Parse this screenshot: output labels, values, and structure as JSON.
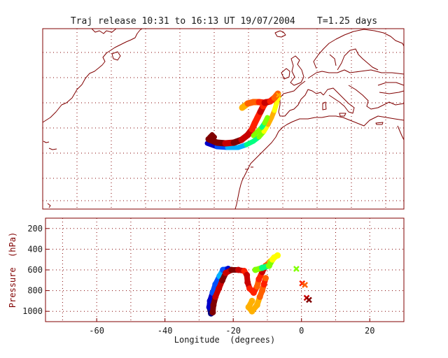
{
  "title": "Traj release 10:31 to 16:13 UT 19/07/2004    T=1.25 days",
  "colors": {
    "frame": "#800000",
    "coast": "#800000",
    "grid": "#800000",
    "text": "#1a1a1a",
    "ylabel": "#800000",
    "rainbow": [
      "#000080",
      "#0000c8",
      "#0050ff",
      "#00b0ff",
      "#00ff80",
      "#80ff00",
      "#ffff00",
      "#ffb000",
      "#ff6000",
      "#ff2000",
      "#c80000",
      "#800000"
    ]
  },
  "map": {
    "lon_range": [
      -75,
      30
    ],
    "lat_range": [
      0,
      65
    ],
    "trajectories_color_scale": "rainbow"
  },
  "chart_data": {
    "type": "scatter",
    "xlabel": "Longitude  (degrees)",
    "ylabel": "Pressure  (hPa)",
    "xlim": [
      -75,
      30
    ],
    "ylim": [
      1100,
      100
    ],
    "x_ticks": [
      "-60",
      "-40",
      "-20",
      "0",
      "20"
    ],
    "y_ticks": [
      "200",
      "400",
      "600",
      "800",
      "1000"
    ],
    "x_tick_values": [
      -60,
      -40,
      -20,
      0,
      20
    ],
    "y_tick_values": [
      200,
      400,
      600,
      800,
      1000
    ],
    "grid": true,
    "trajectory_points": [
      {
        "lon": -26.5,
        "p": 1020,
        "c": 0
      },
      {
        "lon": -27.0,
        "p": 960,
        "c": 1
      },
      {
        "lon": -26.8,
        "p": 900,
        "c": 1
      },
      {
        "lon": -26.0,
        "p": 820,
        "c": 2
      },
      {
        "lon": -25.2,
        "p": 740,
        "c": 2
      },
      {
        "lon": -24.0,
        "p": 660,
        "c": 3
      },
      {
        "lon": -23.0,
        "p": 600,
        "c": 2
      },
      {
        "lon": -21.5,
        "p": 590,
        "c": 1
      },
      {
        "lon": -26.0,
        "p": 1010,
        "c": 11
      },
      {
        "lon": -25.8,
        "p": 940,
        "c": 11
      },
      {
        "lon": -25.2,
        "p": 860,
        "c": 10
      },
      {
        "lon": -24.2,
        "p": 780,
        "c": 10
      },
      {
        "lon": -23.2,
        "p": 700,
        "c": 11
      },
      {
        "lon": -22.2,
        "p": 630,
        "c": 10
      },
      {
        "lon": -20.5,
        "p": 600,
        "c": 11
      },
      {
        "lon": -18.5,
        "p": 600,
        "c": 10
      },
      {
        "lon": -16.8,
        "p": 610,
        "c": 9
      },
      {
        "lon": -16.0,
        "p": 650,
        "c": 10
      },
      {
        "lon": -15.8,
        "p": 720,
        "c": 10
      },
      {
        "lon": -15.2,
        "p": 780,
        "c": 9
      },
      {
        "lon": -14.0,
        "p": 820,
        "c": 9
      },
      {
        "lon": -13.0,
        "p": 760,
        "c": 8
      },
      {
        "lon": -12.5,
        "p": 690,
        "c": 9
      },
      {
        "lon": -11.5,
        "p": 620,
        "c": 10
      },
      {
        "lon": -10.5,
        "p": 560,
        "c": 8
      },
      {
        "lon": -9.2,
        "p": 520,
        "c": 7
      },
      {
        "lon": -8.0,
        "p": 480,
        "c": 6
      },
      {
        "lon": -7.0,
        "p": 460,
        "c": 6
      },
      {
        "lon": -13.5,
        "p": 600,
        "c": 5
      },
      {
        "lon": -11.5,
        "p": 580,
        "c": 4
      },
      {
        "lon": -9.5,
        "p": 560,
        "c": 5
      },
      {
        "lon": -8.5,
        "p": 500,
        "c": 6
      },
      {
        "lon": -14.5,
        "p": 900,
        "c": 7
      },
      {
        "lon": -15.5,
        "p": 960,
        "c": 7
      },
      {
        "lon": -14.5,
        "p": 1000,
        "c": 7
      },
      {
        "lon": -13.0,
        "p": 940,
        "c": 7
      },
      {
        "lon": -12.2,
        "p": 860,
        "c": 8
      },
      {
        "lon": -11.5,
        "p": 800,
        "c": 8
      },
      {
        "lon": -11.0,
        "p": 740,
        "c": 9
      },
      {
        "lon": -10.5,
        "p": 680,
        "c": 8
      }
    ],
    "release_points": [
      {
        "lon": -1.5,
        "p": 590,
        "c": 5
      },
      {
        "lon": 0.2,
        "p": 730,
        "c": 9
      },
      {
        "lon": 1.0,
        "p": 745,
        "c": 8
      },
      {
        "lon": 1.5,
        "p": 870,
        "c": 10
      },
      {
        "lon": 2.2,
        "p": 890,
        "c": 11
      }
    ]
  }
}
